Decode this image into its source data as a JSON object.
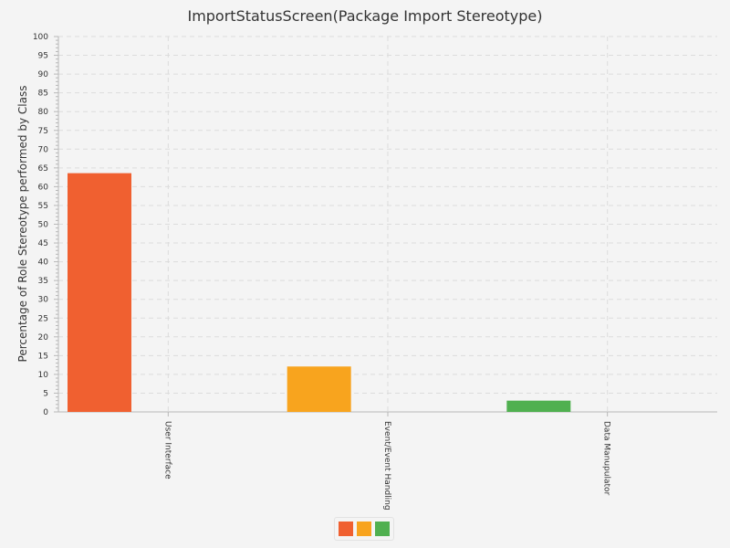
{
  "chart_data": {
    "type": "bar",
    "title": "ImportStatusScreen(Package Import Stereotype)",
    "xlabel": "",
    "ylabel": "Percentage of Role Stereotype performed by Class",
    "ylim": [
      0,
      100
    ],
    "y_ticks": [
      0,
      5,
      10,
      15,
      20,
      25,
      30,
      35,
      40,
      45,
      50,
      55,
      60,
      65,
      70,
      75,
      80,
      85,
      90,
      95,
      100
    ],
    "grid": true,
    "categories": [
      "User Interface",
      "Event/Event Handling",
      "Data Manupulator"
    ],
    "values": [
      63.6,
      12.1,
      3.0
    ],
    "colors": [
      "#f06030",
      "#f8a41e",
      "#50b050"
    ],
    "legend": {
      "placement": "bottom-center",
      "swatches": [
        "#f06030",
        "#f8a41e",
        "#50b050"
      ]
    }
  }
}
